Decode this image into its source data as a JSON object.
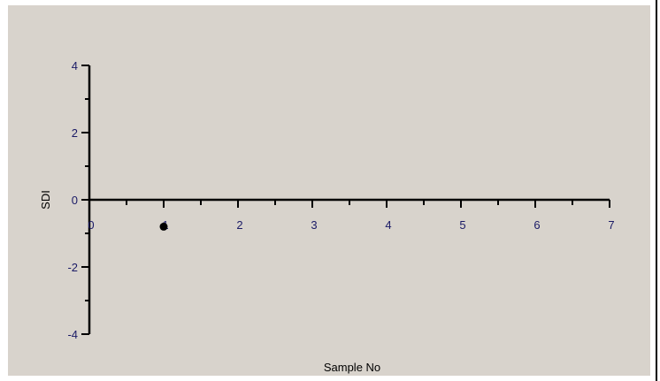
{
  "chart_data": {
    "type": "scatter",
    "title": "",
    "xlabel": "Sample No",
    "ylabel": "SDI",
    "xlim": [
      0,
      7
    ],
    "ylim": [
      -4,
      4
    ],
    "x_ticks": [
      "0",
      "1",
      "2",
      "3",
      "4",
      "5",
      "6",
      "7"
    ],
    "y_ticks": [
      "4",
      "2",
      "0",
      "-2",
      "-4"
    ],
    "series": [
      {
        "x": [
          1
        ],
        "y": [
          -0.8
        ]
      }
    ],
    "grid": false,
    "colors": {
      "background": "#d8d3cc",
      "axis": "#000000",
      "tick_label": "#1a1a66",
      "marker": "#000000"
    }
  }
}
